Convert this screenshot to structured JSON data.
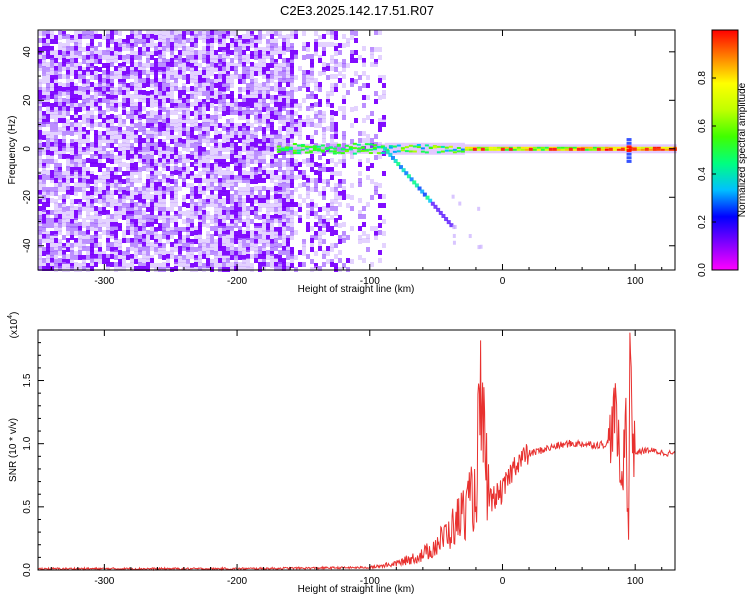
{
  "figure_title": "C2E3.2025.142.17.51.R07",
  "chart_data": [
    {
      "type": "heatmap",
      "title": "C2E3.2025.142.17.51.R07",
      "xlabel": "Height of straight line (km)",
      "ylabel": "Frequency (Hz)",
      "xlim": [
        -350,
        130
      ],
      "ylim": [
        -50,
        49
      ],
      "xticks": [
        -300,
        -200,
        -100,
        0,
        100
      ],
      "yticks": [
        -40,
        -20,
        0,
        20,
        40
      ],
      "xtick_labels": [
        "-300",
        "-200",
        "-100",
        "0",
        "100"
      ],
      "ytick_labels": [
        "-40",
        "-20",
        "0",
        "20",
        "40"
      ],
      "colorbar": {
        "label": "Normalized spectral amplitude",
        "range": [
          0,
          1
        ],
        "ticks": [
          0.0,
          0.2,
          0.4,
          0.6,
          0.8
        ],
        "tick_labels": [
          "0.0",
          "0.2",
          "0.4",
          "0.6",
          "0.8"
        ],
        "colormap": [
          "#ff00ff",
          "#8000ff",
          "#0000ff",
          "#00c0ff",
          "#00ff80",
          "#40ff00",
          "#c0ff00",
          "#ffff00",
          "#ff8000",
          "#ff0000"
        ]
      },
      "features": {
        "noise_region": {
          "x": [
            -350,
            -90
          ],
          "intensity": 0.12
        },
        "carrier_line": {
          "x": [
            -170,
            130
          ],
          "freq": 0,
          "peak": 0.95
        },
        "doppler_tail": {
          "x": [
            -90,
            -40
          ],
          "freq_end": -35
        },
        "spike": {
          "x": 95,
          "freq_spread": 10
        }
      }
    },
    {
      "type": "line",
      "xlabel": "Height of straight line (km)",
      "ylabel": "SNR (10 * v/v)",
      "scale_label": "(x10",
      "scale_exponent": "4",
      "xlim": [
        -350,
        130
      ],
      "ylim": [
        0,
        1.9
      ],
      "xticks": [
        -300,
        -200,
        -100,
        0,
        100
      ],
      "yticks": [
        0,
        0.5,
        1.0,
        1.5
      ],
      "xtick_labels": [
        "-300",
        "-200",
        "-100",
        "0",
        "100"
      ],
      "ytick_labels": [
        "0.0",
        "0.5",
        "1.0",
        "1.5"
      ],
      "color": "#e8312f",
      "series": [
        {
          "x": [
            -350,
            -200,
            -100,
            -80,
            -60,
            -50,
            -40,
            -30,
            -20,
            -17,
            -10,
            0,
            10,
            20,
            30,
            40,
            50,
            60,
            70,
            80,
            85,
            90,
            93,
            95,
            96,
            97,
            98,
            100,
            110,
            120,
            130
          ],
          "values": [
            0.01,
            0.01,
            0.02,
            0.05,
            0.12,
            0.2,
            0.3,
            0.45,
            0.6,
            1.3,
            0.55,
            0.62,
            0.85,
            0.92,
            0.95,
            0.98,
            1.0,
            1.0,
            0.99,
            1.0,
            1.28,
            0.6,
            1.35,
            0.05,
            1.9,
            1.6,
            1.0,
            0.93,
            0.95,
            0.93,
            0.92
          ]
        }
      ]
    }
  ]
}
